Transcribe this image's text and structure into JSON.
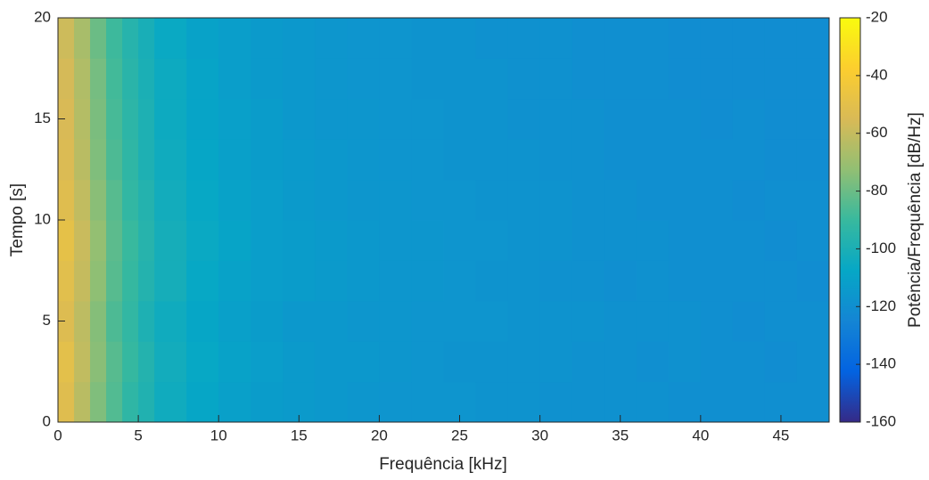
{
  "chart_data": {
    "type": "heatmap",
    "xlabel": "Frequência [kHz]",
    "ylabel": "Tempo [s]",
    "colorbar_label": "Potência/Frequência [dB/Hz]",
    "x": [
      0,
      1,
      2,
      3,
      4,
      5,
      6,
      8,
      10,
      12,
      14,
      16,
      18,
      20,
      22,
      24,
      26,
      28,
      30,
      32,
      34,
      36,
      38,
      40,
      42,
      44,
      46,
      48
    ],
    "y": [
      0,
      2,
      4,
      6,
      8,
      10,
      12,
      14,
      16,
      18,
      20
    ],
    "values": [
      [
        -52,
        -63,
        -76,
        -85,
        -93,
        -98,
        -104,
        -108,
        -111,
        -113,
        -114,
        -115,
        -116,
        -117,
        -117,
        -117,
        -118,
        -118,
        -119,
        -119,
        -119,
        -119,
        -120,
        -120,
        -120,
        -120,
        -120
      ],
      [
        -50,
        -61,
        -74,
        -84,
        -91,
        -97,
        -103,
        -107,
        -110,
        -112,
        -114,
        -115,
        -115,
        -116,
        -117,
        -118,
        -118,
        -118,
        -118,
        -119,
        -119,
        -120,
        -119,
        -120,
        -120,
        -121,
        -120
      ],
      [
        -53,
        -62,
        -75,
        -86,
        -92,
        -99,
        -104,
        -108,
        -111,
        -113,
        -115,
        -115,
        -116,
        -116,
        -117,
        -117,
        -117,
        -118,
        -118,
        -118,
        -119,
        -119,
        -119,
        -120,
        -121,
        -120,
        -120
      ],
      [
        -51,
        -60,
        -73,
        -84,
        -91,
        -97,
        -102,
        -107,
        -110,
        -112,
        -113,
        -114,
        -115,
        -116,
        -116,
        -117,
        -118,
        -118,
        -119,
        -119,
        -120,
        -119,
        -120,
        -120,
        -120,
        -120,
        -121
      ],
      [
        -49,
        -59,
        -72,
        -83,
        -90,
        -96,
        -102,
        -106,
        -109,
        -112,
        -113,
        -114,
        -115,
        -116,
        -116,
        -117,
        -117,
        -118,
        -118,
        -119,
        -119,
        -119,
        -120,
        -120,
        -120,
        -121,
        -120
      ],
      [
        -52,
        -61,
        -74,
        -84,
        -92,
        -97,
        -103,
        -107,
        -110,
        -112,
        -114,
        -115,
        -116,
        -116,
        -117,
        -117,
        -118,
        -118,
        -118,
        -119,
        -119,
        -120,
        -120,
        -120,
        -121,
        -120,
        -120
      ],
      [
        -54,
        -63,
        -76,
        -86,
        -93,
        -99,
        -104,
        -108,
        -111,
        -113,
        -114,
        -115,
        -116,
        -117,
        -117,
        -118,
        -118,
        -118,
        -119,
        -119,
        -120,
        -120,
        -120,
        -120,
        -120,
        -121,
        -121
      ],
      [
        -55,
        -64,
        -77,
        -87,
        -94,
        -99,
        -105,
        -109,
        -111,
        -113,
        -115,
        -116,
        -116,
        -117,
        -117,
        -118,
        -118,
        -119,
        -119,
        -119,
        -120,
        -120,
        -120,
        -121,
        -120,
        -121,
        -121
      ],
      [
        -56,
        -65,
        -78,
        -88,
        -95,
        -100,
        -105,
        -109,
        -112,
        -114,
        -115,
        -116,
        -117,
        -117,
        -118,
        -118,
        -118,
        -119,
        -119,
        -120,
        -120,
        -120,
        -121,
        -121,
        -121,
        -121,
        -121
      ],
      [
        -58,
        -67,
        -80,
        -89,
        -96,
        -101,
        -106,
        -110,
        -112,
        -114,
        -115,
        -116,
        -117,
        -117,
        -118,
        -118,
        -119,
        -119,
        -119,
        -120,
        -120,
        -120,
        -121,
        -121,
        -121,
        -121,
        -121
      ]
    ],
    "xlim": [
      0,
      48
    ],
    "xticks": [
      0,
      5,
      10,
      15,
      20,
      25,
      30,
      35,
      40,
      45
    ],
    "ylim": [
      0,
      20
    ],
    "yticks": [
      0,
      5,
      10,
      15,
      20
    ],
    "clim": [
      -160,
      -20
    ],
    "cticks": [
      -160,
      -140,
      -120,
      -100,
      -80,
      -60,
      -40,
      -20
    ],
    "colormap": [
      "#352a87",
      "#0363e1",
      "#1485d4",
      "#06a7c6",
      "#38b99e",
      "#92bf73",
      "#d9ba56",
      "#fcce2e",
      "#f9fb0e"
    ]
  }
}
